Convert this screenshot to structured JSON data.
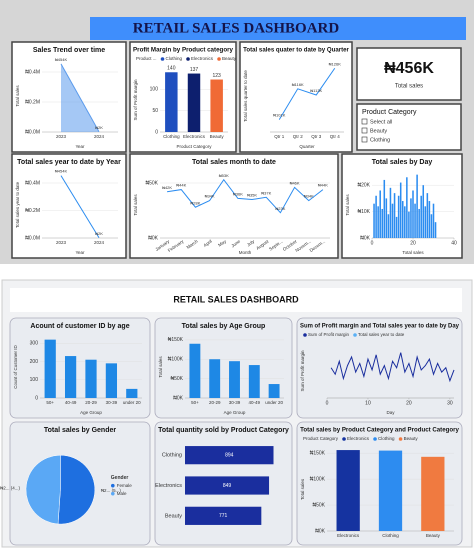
{
  "title_top": "RETAIL SALES DASHBOARD",
  "kpi": {
    "value": "₦456K",
    "label": "Total sales"
  },
  "slicer": {
    "title": "Product Category",
    "options": [
      "Select all",
      "Beauty",
      "Clothing"
    ]
  },
  "title_bottom": "RETAIL SALES DASHBOARD",
  "chart_data": [
    {
      "type": "area",
      "title": "Sales Trend over time",
      "y_label": "Total sales",
      "x_label": "Year",
      "categories": [
        "2023",
        "2024"
      ],
      "values": [
        454000,
        2000
      ],
      "value_labels": [
        "₦454K",
        "₦2K"
      ],
      "color": "#5b9bec",
      "ylim": [
        0,
        480000
      ],
      "yticks": [
        {
          "value": 0,
          "label": "₦0.0M"
        },
        {
          "value": 200000,
          "label": "₦0.2M"
        },
        {
          "value": 400000,
          "label": "₦0.4M"
        }
      ]
    },
    {
      "type": "bar",
      "title": "Profit Margin by Product category",
      "y_label": "Sum of Profit margin",
      "x_label": "Product Category",
      "legend_title": "Product ...",
      "categories": [
        "Clothing",
        "Electronics",
        "Beauty"
      ],
      "values": [
        140,
        137,
        123
      ],
      "data_labels": true,
      "colors": [
        "#1f4fbf",
        "#0d1f6e",
        "#f06a35"
      ],
      "ylim": [
        0,
        150
      ],
      "yticks": [
        0,
        50,
        100
      ]
    },
    {
      "type": "line",
      "title": "Total sales quater to date by Quarter",
      "y_label": "Total sales quarter to date",
      "x_label": "Quarter",
      "categories": [
        "Qtr 1",
        "Qtr 2",
        "Qtr 3",
        "Qtr 4"
      ],
      "values": [
        101000,
        116000,
        113000,
        126000
      ],
      "value_labels": [
        "₦101K",
        "₦116K",
        "₦113K",
        "₦126K"
      ],
      "color": "#2b8cf0",
      "ylim": [
        95000,
        130000
      ]
    },
    {
      "type": "line",
      "title": "Total sales year to date by Year",
      "y_label": "Total sales year to date",
      "x_label": "Year",
      "categories": [
        "2023",
        "2024"
      ],
      "values": [
        454000,
        2000
      ],
      "value_labels": [
        "₦454K",
        "₦2K"
      ],
      "color": "#2b8cf0",
      "ylim": [
        0,
        480000
      ],
      "yticks": [
        {
          "value": 0,
          "label": "₦0.0M"
        },
        {
          "value": 200000,
          "label": "₦0.2M"
        },
        {
          "value": 400000,
          "label": "₦0.4M"
        }
      ]
    },
    {
      "type": "line",
      "title": "Total sales month to date",
      "y_label": "Total sales",
      "x_label": "Month",
      "categories": [
        "January",
        "February",
        "March",
        "April",
        "May",
        "June",
        "July",
        "August",
        "Septe...",
        "October",
        "Novem...",
        "Decem..."
      ],
      "values": [
        42000,
        44000,
        28000,
        34000,
        53000,
        36000,
        35000,
        37000,
        23000,
        46000,
        34000,
        44000
      ],
      "value_labels": [
        "₦42K",
        "₦44K",
        "₦28K",
        "₦34K",
        "₦53K",
        "₦36K",
        "₦35K",
        "₦37K",
        "₦23K",
        "₦46K",
        "₦34K",
        "₦44K"
      ],
      "color": "#2b8cf0",
      "ylim": [
        0,
        60000
      ],
      "yticks": [
        {
          "value": 0,
          "label": "₦0K"
        },
        {
          "value": 50000,
          "label": "₦50K"
        }
      ]
    },
    {
      "type": "bar",
      "title": "Total sales by Day",
      "y_label": "Total sales",
      "x_label": "Total sales",
      "x": [
        1,
        2,
        3,
        4,
        5,
        6,
        7,
        8,
        9,
        10,
        11,
        12,
        13,
        14,
        15,
        16,
        17,
        18,
        19,
        20,
        21,
        22,
        23,
        24,
        25,
        26,
        27,
        28,
        29,
        30,
        31
      ],
      "values": [
        13000,
        16000,
        12000,
        18000,
        11000,
        22000,
        15000,
        9000,
        19000,
        13000,
        17000,
        8000,
        16000,
        21000,
        14000,
        12000,
        23000,
        10000,
        15000,
        18000,
        13000,
        24000,
        11000,
        16000,
        20000,
        12000,
        17000,
        14000,
        9000,
        13000,
        6000
      ],
      "color": "#2b8cf0",
      "xlim": [
        0,
        40
      ],
      "xticks": [
        0,
        20,
        40
      ],
      "ylim": [
        0,
        25000
      ],
      "yticks": [
        {
          "value": 0,
          "label": "₦0K"
        },
        {
          "value": 10000,
          "label": "₦10K"
        },
        {
          "value": 20000,
          "label": "₦20K"
        }
      ]
    },
    {
      "type": "bar",
      "title": "Acount of customer ID by age",
      "y_label": "Count of Customer ID",
      "x_label": "Age Group",
      "categories": [
        "50+",
        "40-49",
        "20-29",
        "30-39",
        "under 20"
      ],
      "values": [
        320,
        230,
        210,
        190,
        50
      ],
      "color": "#1e88e5",
      "ylim": [
        0,
        340
      ],
      "yticks": [
        0,
        100,
        200,
        300
      ]
    },
    {
      "type": "bar",
      "title": "Total sales by Age Group",
      "y_label": "Total sales",
      "x_label": "Age Group",
      "categories": [
        "50+",
        "20-29",
        "30-39",
        "40-49",
        "under 20"
      ],
      "values": [
        140000,
        100000,
        95000,
        85000,
        36000
      ],
      "color": "#1e88e5",
      "ylim": [
        0,
        160000
      ],
      "yticks": [
        {
          "value": 0,
          "label": "₦0K"
        },
        {
          "value": 50000,
          "label": "₦50K"
        },
        {
          "value": 100000,
          "label": "₦100K"
        },
        {
          "value": 150000,
          "label": "₦150K"
        }
      ]
    },
    {
      "type": "line",
      "title": "Sum of Profit margin and Total sales year to date by Day",
      "y_label": "Sum of Profit margin",
      "x_label": "Day",
      "x": [
        1,
        2,
        3,
        4,
        5,
        6,
        7,
        8,
        9,
        10,
        11,
        12,
        13,
        14,
        15,
        16,
        17,
        18,
        19,
        20,
        21,
        22,
        23,
        24,
        25,
        26,
        27,
        28,
        29,
        30,
        31
      ],
      "series": [
        {
          "name": "Sum of Profit margin",
          "color": "#1a2e9e",
          "values": [
            14,
            11,
            17,
            9,
            15,
            19,
            12,
            16,
            10,
            18,
            13,
            20,
            11,
            15,
            9,
            17,
            14,
            21,
            12,
            16,
            10,
            19,
            13,
            15,
            18,
            11,
            16,
            12,
            14,
            8,
            13
          ]
        },
        {
          "name": "Total sales year to date",
          "color": "#5ab0f5"
        }
      ],
      "xlim": [
        0,
        31
      ],
      "xticks": [
        0,
        10,
        20,
        30
      ],
      "ylim": [
        0,
        25
      ]
    },
    {
      "type": "pie",
      "title": "Total sales by Gender",
      "legend_title": "Gender",
      "categories": [
        "Female",
        "Male"
      ],
      "values": [
        233000,
        223000
      ],
      "value_labels": [
        "₦2... (5...)",
        "₦2... (4...)"
      ],
      "colors": [
        "#1e6fe0",
        "#5aa8f5"
      ]
    },
    {
      "type": "hbar",
      "title": "Total quantity sold by Product Category",
      "categories": [
        "Clothing",
        "Electronics",
        "Beauty"
      ],
      "values": [
        894,
        849,
        771
      ],
      "data_labels": true,
      "color": "#1a2e9e",
      "xlim": [
        0,
        1000
      ]
    },
    {
      "type": "bar",
      "title": "Total sales by Product Category and Product Category",
      "y_label": "Total sales",
      "legend_title": "Product Category",
      "categories": [
        "Electronics",
        "Clothing",
        "Beauty"
      ],
      "values": [
        156000,
        155000,
        143000
      ],
      "colors": [
        "#1533a0",
        "#2d8cf0",
        "#f07a40"
      ],
      "ylim": [
        0,
        160000
      ],
      "yticks": [
        {
          "value": 0,
          "label": "₦0K"
        },
        {
          "value": 50000,
          "label": "₦50K"
        },
        {
          "value": 100000,
          "label": "₦100K"
        },
        {
          "value": 150000,
          "label": "₦150K"
        }
      ]
    }
  ]
}
